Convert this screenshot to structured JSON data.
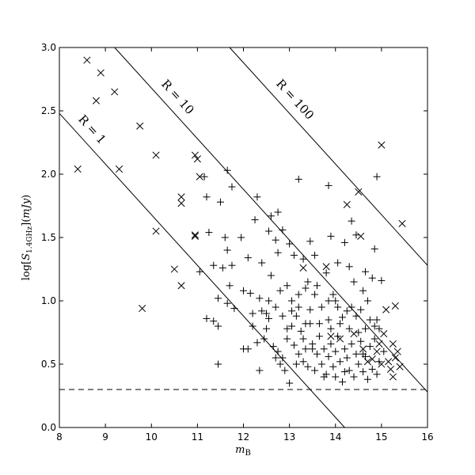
{
  "chart_data": {
    "type": "scatter",
    "title": "",
    "xlabel": "m_B",
    "ylabel": "log[S_1.4GHz](mJy)",
    "xlim": [
      8,
      16
    ],
    "ylim": [
      0.0,
      3.0
    ],
    "xticks": [
      "8",
      "9",
      "10",
      "11",
      "12",
      "13",
      "14",
      "15",
      "16"
    ],
    "yticks": [
      "0.0",
      "0.5",
      "1.0",
      "1.5",
      "2.0",
      "2.5",
      "3.0"
    ],
    "grid": false,
    "reference_lines": [
      {
        "label": "R = 1",
        "points": [
          [
            8.0,
            2.48
          ],
          [
            14.2,
            0.0
          ]
        ]
      },
      {
        "label": "R = 10",
        "points": [
          [
            9.2,
            3.0
          ],
          [
            16.0,
            0.28
          ]
        ]
      },
      {
        "label": "R = 100",
        "points": [
          [
            11.7,
            3.0
          ],
          [
            16.0,
            1.28
          ]
        ]
      }
    ],
    "threshold_line": {
      "y": 0.3
    },
    "series": [
      {
        "marker": "x",
        "points": [
          [
            8.6,
            2.9
          ],
          [
            8.8,
            2.58
          ],
          [
            8.9,
            2.8
          ],
          [
            9.2,
            2.65
          ],
          [
            8.4,
            2.04
          ],
          [
            9.3,
            2.04
          ],
          [
            9.75,
            2.38
          ],
          [
            10.1,
            2.15
          ],
          [
            10.95,
            2.15
          ],
          [
            11.0,
            2.12
          ],
          [
            11.05,
            1.98
          ],
          [
            10.65,
            1.82
          ],
          [
            10.65,
            1.77
          ],
          [
            10.1,
            1.55
          ],
          [
            10.95,
            1.52
          ],
          [
            10.95,
            1.51
          ],
          [
            10.5,
            1.25
          ],
          [
            10.65,
            1.12
          ],
          [
            9.8,
            0.94
          ],
          [
            13.3,
            1.26
          ],
          [
            13.8,
            1.27
          ],
          [
            14.25,
            1.76
          ],
          [
            14.5,
            1.86
          ],
          [
            14.55,
            1.51
          ],
          [
            15.0,
            2.23
          ],
          [
            15.45,
            1.61
          ],
          [
            15.3,
            0.96
          ],
          [
            15.1,
            0.93
          ],
          [
            13.9,
            0.72
          ],
          [
            14.1,
            0.7
          ],
          [
            14.4,
            0.74
          ],
          [
            14.6,
            0.62
          ],
          [
            14.8,
            0.54
          ],
          [
            15.0,
            0.5
          ],
          [
            15.2,
            0.46
          ],
          [
            15.25,
            0.4
          ],
          [
            15.3,
            0.55
          ],
          [
            15.25,
            0.66
          ],
          [
            15.35,
            0.6
          ],
          [
            15.05,
            0.74
          ],
          [
            14.9,
            0.6
          ],
          [
            14.7,
            0.52
          ],
          [
            15.4,
            0.48
          ],
          [
            14.95,
            0.66
          ],
          [
            15.15,
            0.52
          ]
        ]
      },
      {
        "marker": "+",
        "points": [
          [
            11.15,
            1.98
          ],
          [
            11.2,
            1.82
          ],
          [
            11.65,
            2.03
          ],
          [
            11.75,
            1.9
          ],
          [
            11.5,
            1.78
          ],
          [
            12.3,
            1.82
          ],
          [
            12.6,
            1.67
          ],
          [
            12.25,
            1.64
          ],
          [
            12.75,
            1.7
          ],
          [
            13.2,
            1.96
          ],
          [
            13.85,
            1.91
          ],
          [
            14.35,
            1.63
          ],
          [
            14.9,
            1.98
          ],
          [
            11.25,
            1.54
          ],
          [
            11.6,
            1.5
          ],
          [
            11.95,
            1.5
          ],
          [
            12.55,
            1.55
          ],
          [
            12.85,
            1.56
          ],
          [
            12.7,
            1.48
          ],
          [
            13.0,
            1.45
          ],
          [
            13.45,
            1.47
          ],
          [
            13.9,
            1.51
          ],
          [
            14.2,
            1.46
          ],
          [
            14.45,
            1.52
          ],
          [
            14.85,
            1.41
          ],
          [
            11.65,
            1.4
          ],
          [
            11.55,
            1.26
          ],
          [
            11.35,
            1.28
          ],
          [
            11.05,
            1.23
          ],
          [
            11.75,
            1.28
          ],
          [
            12.1,
            1.34
          ],
          [
            12.4,
            1.3
          ],
          [
            12.75,
            1.38
          ],
          [
            13.1,
            1.36
          ],
          [
            13.3,
            1.33
          ],
          [
            13.55,
            1.36
          ],
          [
            13.8,
            1.22
          ],
          [
            14.05,
            1.3
          ],
          [
            14.3,
            1.27
          ],
          [
            14.65,
            1.23
          ],
          [
            14.8,
            1.18
          ],
          [
            15.0,
            1.16
          ],
          [
            11.7,
            1.12
          ],
          [
            11.45,
            1.02
          ],
          [
            11.65,
            0.98
          ],
          [
            11.8,
            0.94
          ],
          [
            11.2,
            0.86
          ],
          [
            11.35,
            0.84
          ],
          [
            11.45,
            0.8
          ],
          [
            11.45,
            0.5
          ],
          [
            12.0,
            1.08
          ],
          [
            12.15,
            1.06
          ],
          [
            12.2,
            0.9
          ],
          [
            12.35,
            1.02
          ],
          [
            12.55,
            1.0
          ],
          [
            12.6,
            1.2
          ],
          [
            12.7,
            0.95
          ],
          [
            12.8,
            1.08
          ],
          [
            12.95,
            1.12
          ],
          [
            13.05,
            1.0
          ],
          [
            13.15,
            0.88
          ],
          [
            13.2,
            1.05
          ],
          [
            13.35,
            1.1
          ],
          [
            13.45,
            0.93
          ],
          [
            13.55,
            1.05
          ],
          [
            13.65,
            0.82
          ],
          [
            13.7,
            0.95
          ],
          [
            13.85,
            1.0
          ],
          [
            13.95,
            1.05
          ],
          [
            14.05,
            0.95
          ],
          [
            14.15,
            0.87
          ],
          [
            14.25,
            0.92
          ],
          [
            14.35,
            0.95
          ],
          [
            14.45,
            0.88
          ],
          [
            14.55,
            0.93
          ],
          [
            14.6,
            1.08
          ],
          [
            14.75,
            0.85
          ],
          [
            14.85,
            0.8
          ],
          [
            14.95,
            0.78
          ],
          [
            12.0,
            0.62
          ],
          [
            12.1,
            0.62
          ],
          [
            12.3,
            0.67
          ],
          [
            12.35,
            0.45
          ],
          [
            12.45,
            0.7
          ],
          [
            12.55,
            0.86
          ],
          [
            12.65,
            0.64
          ],
          [
            12.75,
            0.6
          ],
          [
            12.85,
            0.55
          ],
          [
            12.9,
            0.45
          ],
          [
            12.95,
            0.7
          ],
          [
            13.0,
            0.35
          ],
          [
            13.05,
            0.8
          ],
          [
            13.1,
            0.65
          ],
          [
            13.15,
            0.5
          ],
          [
            13.2,
            0.58
          ],
          [
            13.25,
            0.76
          ],
          [
            13.3,
            0.7
          ],
          [
            13.35,
            0.62
          ],
          [
            13.4,
            0.48
          ],
          [
            13.45,
            0.82
          ],
          [
            13.5,
            0.66
          ],
          [
            13.55,
            0.45
          ],
          [
            13.6,
            0.58
          ],
          [
            13.65,
            0.72
          ],
          [
            13.7,
            0.5
          ],
          [
            13.75,
            0.62
          ],
          [
            13.8,
            0.42
          ],
          [
            13.85,
            0.56
          ],
          [
            13.9,
            0.66
          ],
          [
            13.95,
            0.48
          ],
          [
            14.0,
            0.6
          ],
          [
            14.05,
            0.72
          ],
          [
            14.1,
            0.52
          ],
          [
            14.15,
            0.36
          ],
          [
            14.2,
            0.62
          ],
          [
            14.25,
            0.55
          ],
          [
            14.3,
            0.45
          ],
          [
            14.35,
            0.66
          ],
          [
            14.4,
            0.4
          ],
          [
            14.45,
            0.58
          ],
          [
            14.5,
            0.5
          ],
          [
            14.55,
            0.68
          ],
          [
            14.6,
            0.44
          ],
          [
            14.65,
            0.56
          ],
          [
            14.7,
            0.38
          ],
          [
            14.75,
            0.64
          ],
          [
            14.8,
            0.46
          ],
          [
            14.85,
            0.7
          ],
          [
            14.9,
            0.42
          ],
          [
            14.95,
            0.52
          ],
          [
            13.2,
            0.95
          ],
          [
            13.4,
            1.15
          ],
          [
            13.6,
            1.12
          ],
          [
            14.0,
            1.0
          ],
          [
            14.4,
            1.15
          ],
          [
            14.7,
            1.0
          ],
          [
            12.5,
            0.9
          ],
          [
            12.85,
            0.88
          ],
          [
            13.05,
            0.92
          ],
          [
            13.85,
            0.85
          ],
          [
            12.7,
            0.55
          ],
          [
            12.8,
            0.5
          ],
          [
            13.3,
            0.52
          ],
          [
            13.75,
            0.4
          ],
          [
            14.0,
            0.4
          ],
          [
            14.2,
            0.44
          ],
          [
            14.6,
            0.58
          ],
          [
            14.3,
            0.78
          ],
          [
            14.1,
            0.82
          ],
          [
            13.9,
            0.78
          ],
          [
            14.5,
            0.75
          ],
          [
            14.65,
            0.78
          ],
          [
            14.9,
            0.85
          ],
          [
            15.05,
            0.6
          ],
          [
            13.5,
            0.62
          ],
          [
            13.35,
            0.82
          ],
          [
            12.95,
            0.78
          ],
          [
            12.5,
            0.78
          ],
          [
            12.2,
            0.8
          ],
          [
            12.4,
            0.92
          ]
        ]
      }
    ]
  }
}
